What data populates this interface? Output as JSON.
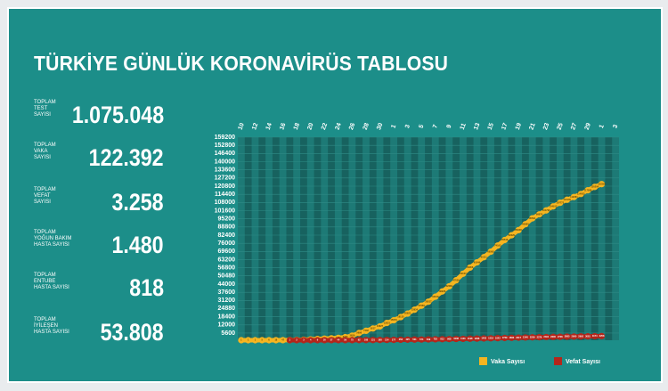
{
  "header": {
    "title": "TÜRKİYE GÜNLÜK KORONAVİRÜS TABLOSU"
  },
  "stats": [
    {
      "label": [
        "TOPLAM",
        "TEST",
        "SAYISI"
      ],
      "value": "1.075.048"
    },
    {
      "label": [
        "TOPLAM",
        "VAKA",
        "SAYISI"
      ],
      "value": "122.392"
    },
    {
      "label": [
        "TOPLAM",
        "VEFAT",
        "SAYISI"
      ],
      "value": "3.258"
    },
    {
      "label": [
        "TOPLAM",
        "YOĞUN BAKIM",
        "HASTA SAYISI"
      ],
      "value": "1.480"
    },
    {
      "label": [
        "TOPLAM",
        "ENTUBE",
        "HASTA SAYISI"
      ],
      "value": "818"
    },
    {
      "label": [
        "TOPLAM",
        "İYİLEŞEN",
        "HASTA SAYISI"
      ],
      "value": "53.808"
    }
  ],
  "chart_data": {
    "type": "line",
    "categories": [
      "10",
      null,
      "12",
      null,
      "14",
      null,
      "16",
      null,
      "18",
      null,
      "20",
      null,
      "22",
      null,
      "24",
      null,
      "26",
      null,
      "28",
      null,
      "30",
      null,
      "1",
      null,
      "3",
      null,
      "5",
      null,
      "7",
      null,
      "9",
      null,
      "11",
      null,
      "13",
      null,
      "15",
      null,
      "17",
      null,
      "19",
      null,
      "21",
      null,
      "23",
      null,
      "25",
      null,
      "27",
      null,
      "29",
      null,
      "1",
      null,
      "3"
    ],
    "series": [
      {
        "name": "Vaka Sayısı",
        "color": "#f5b521",
        "values": [
          1,
          1,
          1,
          5,
          6,
          18,
          47,
          98,
          191,
          359,
          670,
          947,
          1236,
          1529,
          1872,
          2433,
          3629,
          5698,
          7402,
          9217,
          10827,
          13531,
          15679,
          18135,
          20921,
          23934,
          27069,
          30217,
          34109,
          38226,
          42282,
          47029,
          52167,
          56956,
          61049,
          65111,
          69392,
          74193,
          78546,
          82329,
          86306,
          90980,
          95591,
          98674,
          101790,
          104912,
          107773,
          110130,
          112261,
          114653,
          117589,
          120204,
          122392,
          null,
          null
        ]
      },
      {
        "name": "Vefat Sayısı",
        "color": "#b3261b",
        "values": [
          null,
          null,
          null,
          null,
          null,
          null,
          null,
          1,
          2,
          3,
          4,
          9,
          30,
          37,
          44,
          59,
          75,
          92,
          108,
          131,
          168,
          214,
          277,
          356,
          425,
          501,
          574,
          649,
          725,
          812,
          908,
          1006,
          1101,
          1198,
          1296,
          1403,
          1518,
          1643,
          1769,
          1890,
          2017,
          2140,
          2259,
          2376,
          2491,
          2600,
          2706,
          2805,
          2900,
          2992,
          3081,
          3174,
          3258,
          null,
          null
        ]
      }
    ],
    "ylim": [
      0,
      159200
    ],
    "yticks": [
      5600,
      12000,
      18400,
      24880,
      31200,
      37600,
      44000,
      50480,
      56800,
      63200,
      69600,
      76000,
      82400,
      88800,
      95200,
      101600,
      108000,
      114400,
      120800,
      127200,
      133600,
      140000,
      146400,
      152800,
      159200
    ],
    "grid": true,
    "legend": "bottom-right"
  }
}
